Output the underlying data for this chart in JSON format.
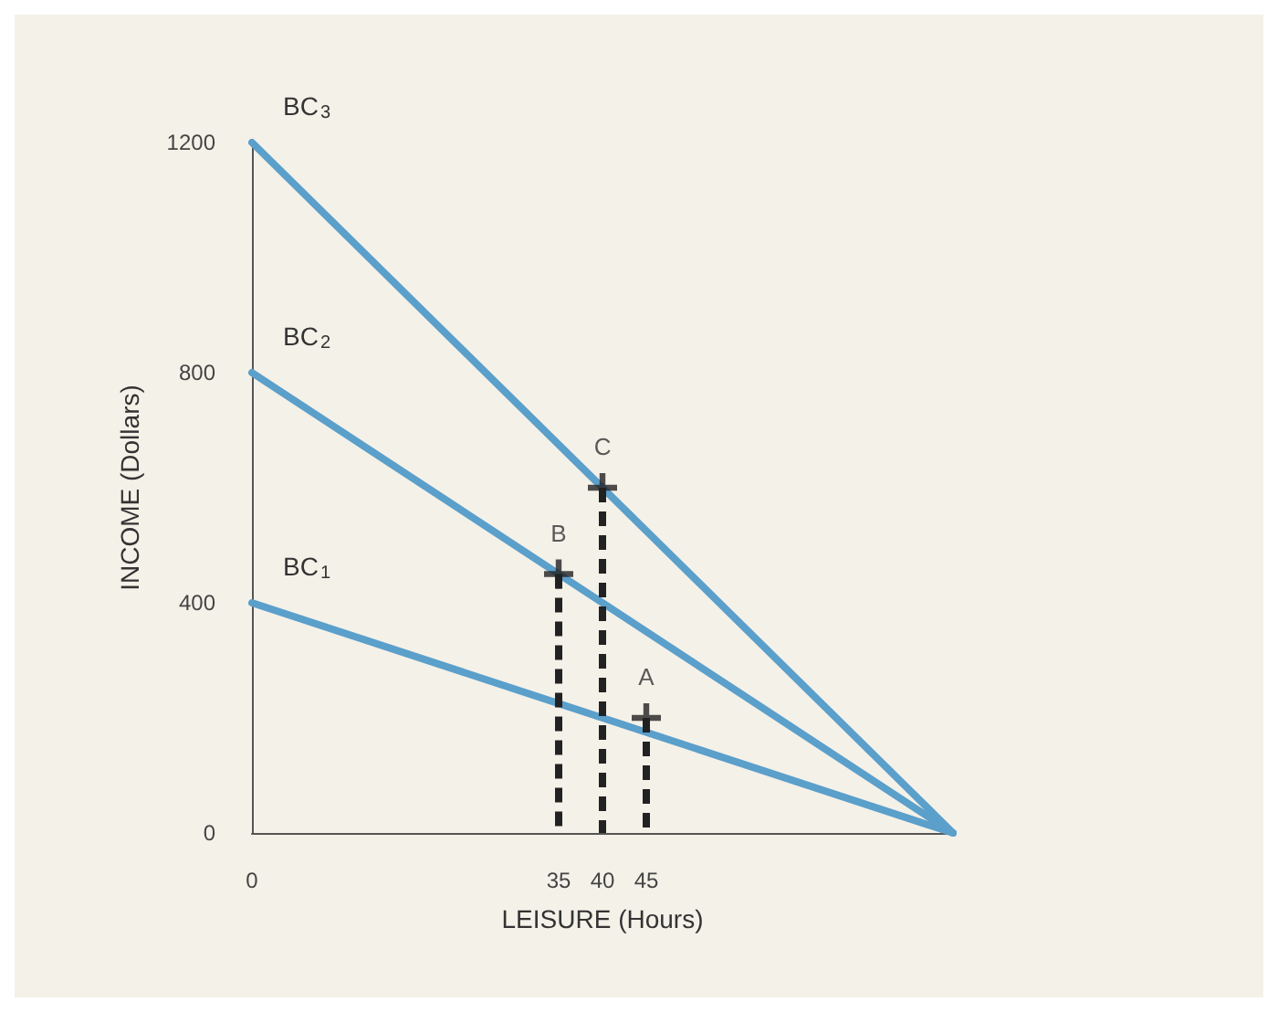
{
  "chart_data": {
    "type": "line",
    "xlabel": "LEISURE (Hours)",
    "ylabel": "INCOME (Dollars)",
    "xlim": [
      0,
      80
    ],
    "xticks": [
      0,
      35,
      40,
      45
    ],
    "ylim": [
      0,
      1200
    ],
    "yticks": [
      0,
      400,
      800,
      1200
    ],
    "x": [
      0,
      80
    ],
    "series": [
      {
        "name": "BC$_{1}$",
        "color": "#5b9fcb",
        "values": [
          400,
          0
        ]
      },
      {
        "name": "BC$_{2}$",
        "color": "#5b9fcb",
        "values": [
          800,
          0
        ]
      },
      {
        "name": "BC$_{3}$",
        "color": "#5b9fcb",
        "values": [
          1200,
          0
        ]
      }
    ],
    "annotations": [
      {
        "text": "A",
        "x": 45,
        "y": 200
      },
      {
        "text": "B",
        "x": 35,
        "y": 450
      },
      {
        "text": "C",
        "x": 40,
        "y": 600
      }
    ],
    "grid": false,
    "legend": false,
    "line_style": "solid"
  }
}
